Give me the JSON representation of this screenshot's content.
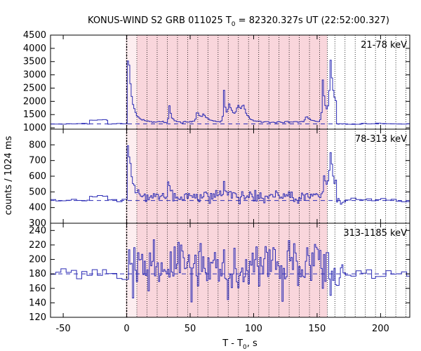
{
  "chart_data": {
    "type": "line",
    "title_main": "KONUS-WIND S2 GRB 011025 T",
    "title_sub": "0",
    "title_tail": " = 82320.327s UT (22:52:00.327)",
    "xlabel_main": "T - T",
    "xlabel_sub": "0",
    "xlabel_tail": ", s",
    "ylabel": "counts / 1024 ms",
    "xlim": [
      -60,
      223
    ],
    "xticks": [
      -50,
      0,
      50,
      100,
      150,
      200
    ],
    "xtick_labels": [
      "-50",
      "0",
      "50",
      "100",
      "150",
      "200"
    ],
    "shaded_interval": [
      0,
      158
    ],
    "light_interval": [
      -1,
      8
    ],
    "trigger_line": 0,
    "vertical_dotted_lines": [
      0,
      8,
      16,
      24,
      32,
      40,
      48,
      56,
      64,
      72,
      80,
      88,
      96,
      104,
      112,
      120,
      128,
      136,
      144,
      152,
      158,
      164,
      172,
      180,
      188,
      196,
      204,
      212,
      220
    ],
    "line_color": "#2b2bb5",
    "shade_color": "#f9d6dc",
    "light_shade_color": "#fdeef0",
    "panels": [
      {
        "label": "21-78 keV",
        "ylim": [
          950,
          4500
        ],
        "yticks": [
          1000,
          1500,
          2000,
          2500,
          3000,
          3500,
          4000,
          4500
        ],
        "ytick_labels": [
          "1000",
          "1500",
          "2000",
          "2500",
          "3000",
          "3500",
          "4000",
          "4500"
        ],
        "background_level": 1150,
        "baseline": 1150,
        "noise": 22,
        "pre_bump": 1300,
        "features": [
          {
            "t": 0.5,
            "amp": 2100,
            "tau": 1.5
          },
          {
            "t": 1.5,
            "amp": 1100,
            "tau": 4
          },
          {
            "t": 33,
            "amp": 700,
            "tau": 1.5
          },
          {
            "t": 55,
            "amp": 450,
            "tau": 3
          },
          {
            "t": 60,
            "amp": 250,
            "tau": 3
          },
          {
            "t": 76,
            "amp": 1350,
            "tau": 1.2
          },
          {
            "t": 80,
            "amp": 700,
            "tau": 4
          },
          {
            "t": 87,
            "amp": 600,
            "tau": 4
          },
          {
            "t": 91,
            "amp": 500,
            "tau": 3
          },
          {
            "t": 141,
            "amp": 250,
            "tau": 3
          },
          {
            "t": 154,
            "amp": 1600,
            "tau": 2
          },
          {
            "t": 160,
            "amp": 2450,
            "tau": 3
          },
          {
            "t": 166,
            "amp": 900,
            "tau": 4
          }
        ]
      },
      {
        "label": "78-313 keV",
        "ylim": [
          300,
          900
        ],
        "yticks": [
          300,
          400,
          500,
          600,
          700,
          800
        ],
        "ytick_labels": [
          "300",
          "400",
          "500",
          "600",
          "700",
          "800"
        ],
        "background_level": 445,
        "baseline": 445,
        "noise": 14,
        "pre_bump": 470,
        "features": [
          {
            "t": 0.5,
            "amp": 370,
            "tau": 1.5
          },
          {
            "t": 2,
            "amp": 100,
            "tau": 4
          },
          {
            "t": 32,
            "amp": 100,
            "tau": 1.5
          },
          {
            "t": 76,
            "amp": 80,
            "tau": 2
          },
          {
            "t": 155,
            "amp": 150,
            "tau": 2
          },
          {
            "t": 160,
            "amp": 330,
            "tau": 2.5
          },
          {
            "t": 165,
            "amp": 130,
            "tau": 3
          }
        ]
      },
      {
        "label": "313-1185 keV",
        "ylim": [
          120,
          250
        ],
        "yticks": [
          120,
          140,
          160,
          180,
          200,
          220,
          240
        ],
        "ytick_labels": [
          "120",
          "140",
          "160",
          "180",
          "200",
          "220",
          "240"
        ],
        "background_level": 180,
        "baseline": 180,
        "noise": 9,
        "pre_bump": 180,
        "features": [
          {
            "t": 57,
            "amp": 45,
            "tau": 0.6
          },
          {
            "t": 94,
            "amp": 20,
            "tau": 1
          }
        ]
      }
    ]
  }
}
